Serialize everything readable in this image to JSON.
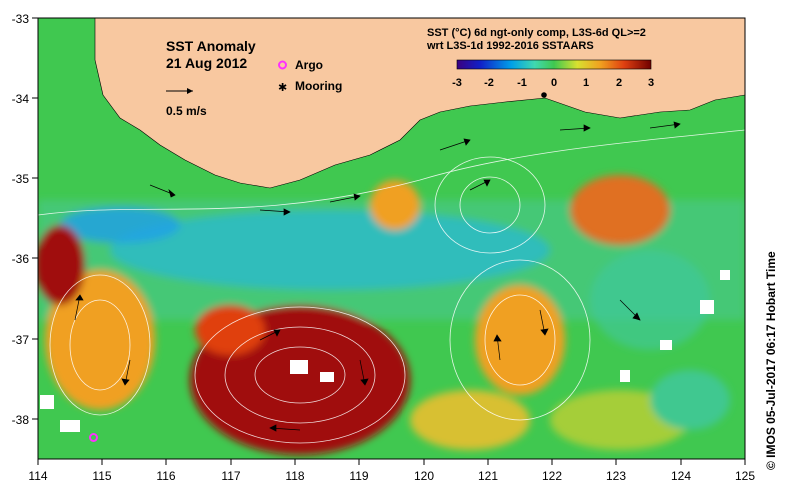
{
  "map": {
    "title": "SST Anomaly",
    "date": "21 Aug 2012",
    "scale_label": "0.5 m/s",
    "legend": {
      "argo": "Argo",
      "mooring": "Mooring"
    },
    "colorbar": {
      "line1": "SST (°C) 6d ngt-only comp, L3S-6d QL>=2",
      "line2": "wrt L3S-1d 1992-2016 SSTAARS",
      "ticks": [
        "-3",
        "-2",
        "-1",
        "0",
        "1",
        "2",
        "3"
      ],
      "range": [
        -3,
        3
      ],
      "colors": [
        "#3b0080",
        "#1020c8",
        "#00a0e8",
        "#40d8b0",
        "#40c850",
        "#d8e030",
        "#f0a020",
        "#e04010",
        "#a00808",
        "#700000"
      ]
    },
    "lon_ticks": [
      "114",
      "115",
      "116",
      "117",
      "118",
      "119",
      "120",
      "121",
      "122",
      "123",
      "124",
      "125"
    ],
    "lat_ticks": [
      "-33",
      "-34",
      "-35",
      "-36",
      "-37",
      "-38"
    ],
    "lon_range": [
      114,
      125
    ],
    "lat_range": [
      -38.5,
      -33
    ],
    "credit": "© IMOS 05-Jul-2017 06:17 Hobart Time",
    "markers": {
      "argo": {
        "lon": 114.85,
        "lat": -38.25,
        "color": "#ff30ff"
      },
      "mooring": {
        "lon": 121.85,
        "lat": -33.95,
        "color": "#000000"
      }
    },
    "colors": {
      "land": "#f8c8a0",
      "ocean_base": "#40c850"
    }
  }
}
